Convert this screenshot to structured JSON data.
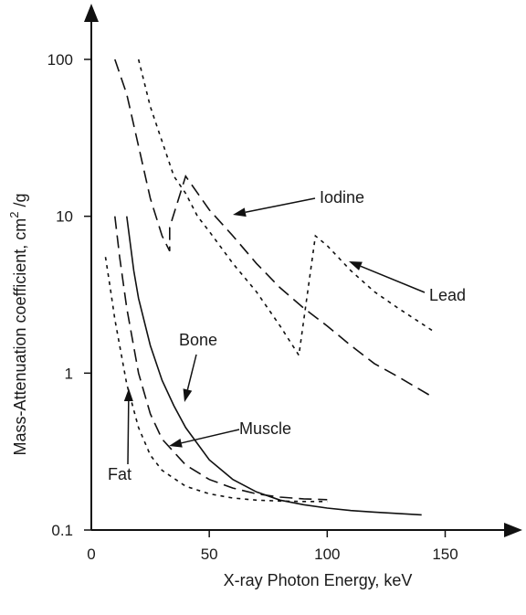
{
  "chart_data": {
    "type": "line",
    "title": "",
    "xlabel": "X-ray Photon Energy, keV",
    "ylabel_main": "Mass-Attenuation coefficient, cm",
    "ylabel_sup": "2",
    "ylabel_tail": " /g",
    "xlim": [
      0,
      180
    ],
    "ylim": [
      0.1,
      200
    ],
    "y_scale": "log",
    "grid": false,
    "x_ticks": [
      {
        "value": 0,
        "label": "0"
      },
      {
        "value": 50,
        "label": "50"
      },
      {
        "value": 100,
        "label": "100"
      },
      {
        "value": 150,
        "label": "150"
      }
    ],
    "y_ticks": [
      {
        "value": 0.1,
        "label": "0.1"
      },
      {
        "value": 1,
        "label": "1"
      },
      {
        "value": 10,
        "label": "10"
      },
      {
        "value": 100,
        "label": "100"
      }
    ],
    "series": [
      {
        "name": "Iodine",
        "dash": "long-dash",
        "x": [
          10,
          15,
          20,
          25,
          30,
          33.2,
          33.2,
          40,
          50,
          60,
          70,
          80,
          90,
          100,
          110,
          120,
          130,
          145
        ],
        "y": [
          100,
          60,
          28,
          13,
          7.5,
          6.0,
          8.5,
          18,
          11,
          7.5,
          5.0,
          3.5,
          2.6,
          2.0,
          1.5,
          1.15,
          0.95,
          0.7
        ]
      },
      {
        "name": "Lead",
        "dash": "short-dash",
        "x": [
          20,
          25,
          30,
          35,
          40,
          45,
          50,
          60,
          70,
          80,
          88,
          88,
          95,
          100,
          110,
          120,
          130,
          145
        ],
        "y": [
          100,
          50,
          30,
          18,
          14,
          10,
          8,
          5,
          3.3,
          2.0,
          1.3,
          1.3,
          7.5,
          6.5,
          4.5,
          3.3,
          2.6,
          1.85
        ]
      },
      {
        "name": "Bone",
        "dash": "solid",
        "x": [
          15,
          18,
          20,
          25,
          30,
          35,
          40,
          50,
          60,
          70,
          80,
          90,
          100,
          110,
          120,
          140
        ],
        "y": [
          10,
          4.5,
          3.0,
          1.5,
          0.9,
          0.62,
          0.45,
          0.28,
          0.21,
          0.175,
          0.155,
          0.145,
          0.138,
          0.133,
          0.13,
          0.125
        ]
      },
      {
        "name": "Muscle",
        "dash": "long-dash",
        "x": [
          10,
          12,
          15,
          20,
          25,
          30,
          40,
          50,
          60,
          70,
          80,
          90,
          100
        ],
        "y": [
          10,
          5.5,
          2.6,
          1.0,
          0.55,
          0.38,
          0.26,
          0.21,
          0.185,
          0.17,
          0.162,
          0.158,
          0.156
        ]
      },
      {
        "name": "Fat",
        "dash": "short-dash",
        "x": [
          6,
          8,
          10,
          15,
          20,
          25,
          30,
          40,
          50,
          60,
          70,
          80,
          90,
          100
        ],
        "y": [
          5.5,
          3.5,
          2.2,
          0.85,
          0.45,
          0.3,
          0.24,
          0.19,
          0.17,
          0.16,
          0.155,
          0.153,
          0.152,
          0.152
        ]
      }
    ],
    "annotations": [
      {
        "text": "Iodine",
        "series": "Iodine"
      },
      {
        "text": "Lead",
        "series": "Lead"
      },
      {
        "text": "Bone",
        "series": "Bone"
      },
      {
        "text": "Muscle",
        "series": "Muscle"
      },
      {
        "text": "Fat",
        "series": "Fat"
      }
    ]
  }
}
